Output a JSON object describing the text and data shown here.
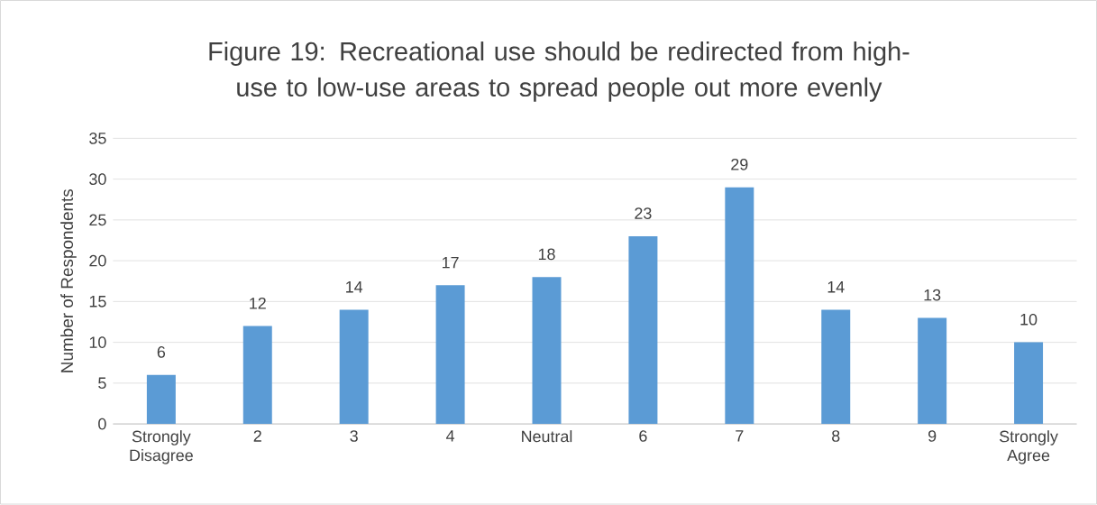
{
  "chart_data": {
    "type": "bar",
    "title": "Figure 19: Recreational use should be redirected from high-use to low-use areas to spread people out more evenly",
    "ylabel": "Number of Respondents",
    "categories": [
      "Strongly Disagree",
      "2",
      "3",
      "4",
      "Neutral",
      "6",
      "7",
      "8",
      "9",
      "Strongly Agree"
    ],
    "values": [
      6,
      12,
      14,
      17,
      18,
      23,
      29,
      14,
      13,
      10
    ],
    "color": "#5b9bd5",
    "ylim": [
      0,
      35
    ],
    "yticks": [
      0,
      5,
      10,
      15,
      20,
      25,
      30,
      35
    ],
    "grid": "y",
    "data_labels": true
  }
}
